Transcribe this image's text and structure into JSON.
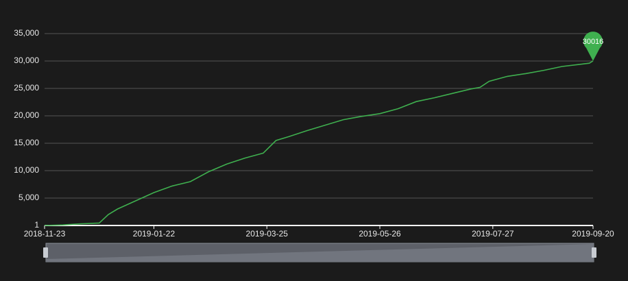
{
  "chart_data": {
    "type": "line",
    "x": [
      "2018-11-23",
      "2018-12-03",
      "2018-12-13",
      "2018-12-23",
      "2018-12-28",
      "2019-01-02",
      "2019-01-12",
      "2019-01-22",
      "2019-02-01",
      "2019-02-11",
      "2019-02-21",
      "2019-03-03",
      "2019-03-13",
      "2019-03-23",
      "2019-03-30",
      "2019-04-06",
      "2019-04-16",
      "2019-04-26",
      "2019-05-06",
      "2019-05-16",
      "2019-05-26",
      "2019-06-05",
      "2019-06-15",
      "2019-06-25",
      "2019-07-05",
      "2019-07-15",
      "2019-07-20",
      "2019-07-25",
      "2019-08-04",
      "2019-08-14",
      "2019-08-24",
      "2019-09-03",
      "2019-09-13",
      "2019-09-18",
      "2019-09-20"
    ],
    "series": [
      {
        "color": "#3fb04f",
        "values": [
          1,
          100,
          300,
          450,
          2000,
          3000,
          4500,
          6000,
          7200,
          8000,
          9800,
          11200,
          12300,
          13200,
          15500,
          16200,
          17300,
          18300,
          19300,
          19900,
          20400,
          21300,
          22600,
          23300,
          24100,
          24900,
          25200,
          26300,
          27200,
          27700,
          28300,
          29000,
          29400,
          29600,
          30016
        ]
      }
    ],
    "xlim": [
      "2018-11-23",
      "2019-09-20"
    ],
    "xticks": [
      "2018-11-23",
      "2019-01-22",
      "2019-03-25",
      "2019-05-26",
      "2019-07-27",
      "2019-09-20"
    ],
    "ylim": [
      1,
      35000
    ],
    "yticks": [
      1,
      {
        "value": 5000,
        "label": "5,000"
      },
      {
        "value": 10000,
        "label": "10,000"
      },
      {
        "value": 15000,
        "label": "15,000"
      },
      {
        "value": 20000,
        "label": "20,000"
      },
      {
        "value": 25000,
        "label": "25,000"
      },
      {
        "value": 30000,
        "label": "30,000"
      },
      {
        "value": 35000,
        "label": "35,000"
      }
    ],
    "grid": true
  }
}
